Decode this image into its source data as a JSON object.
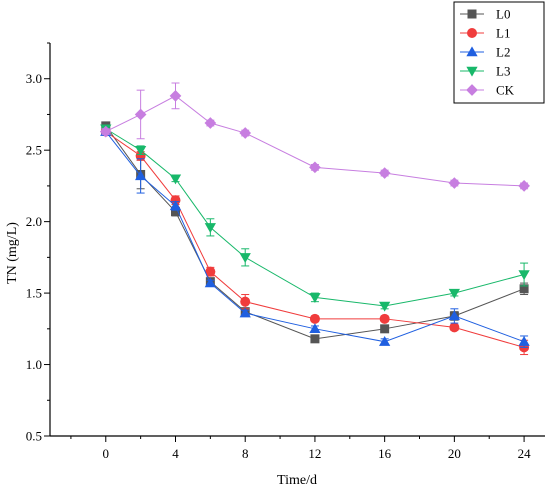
{
  "chart_data": {
    "type": "line",
    "xlabel": "Time/d",
    "ylabel": "TN (mg/L)",
    "x": [
      0,
      2,
      4,
      6,
      8,
      12,
      16,
      20,
      24
    ],
    "x_ticks": [
      0,
      4,
      8,
      12,
      16,
      20,
      24
    ],
    "y_ticks": [
      0.5,
      1.0,
      1.5,
      2.0,
      2.5,
      3.0
    ],
    "x_tick_labels": [
      "0",
      "4",
      "8",
      "12",
      "16",
      "20",
      "24"
    ],
    "y_tick_labels": [
      "0.5",
      "1.0",
      "1.5",
      "2.0",
      "2.5",
      "3.0"
    ],
    "grid": false,
    "legend_position": "top-right",
    "series": [
      {
        "name": "L0",
        "color": "#555555",
        "marker": "square",
        "values": [
          2.67,
          2.33,
          2.07,
          1.58,
          1.37,
          1.18,
          1.25,
          1.34,
          1.53
        ],
        "errors": [
          0.02,
          0.1,
          0.03,
          0.02,
          0.02,
          0.02,
          0.02,
          0.03,
          0.04
        ]
      },
      {
        "name": "L1",
        "color": "#f03c3c",
        "marker": "circle",
        "values": [
          2.63,
          2.46,
          2.15,
          1.65,
          1.44,
          1.32,
          1.32,
          1.26,
          1.12
        ],
        "errors": [
          0.02,
          0.03,
          0.03,
          0.03,
          0.05,
          0.02,
          0.02,
          0.02,
          0.05
        ]
      },
      {
        "name": "L2",
        "color": "#1f5fe0",
        "marker": "triangle-up",
        "values": [
          2.63,
          2.32,
          2.11,
          1.57,
          1.36,
          1.25,
          1.16,
          1.34,
          1.16
        ],
        "errors": [
          0.02,
          0.12,
          0.03,
          0.02,
          0.02,
          0.02,
          0.02,
          0.05,
          0.04
        ]
      },
      {
        "name": "L3",
        "color": "#18b86a",
        "marker": "triangle-down",
        "values": [
          2.65,
          2.5,
          2.3,
          1.96,
          1.75,
          1.47,
          1.41,
          1.5,
          1.63
        ],
        "errors": [
          0.02,
          0.03,
          0.02,
          0.06,
          0.06,
          0.03,
          0.02,
          0.02,
          0.08
        ]
      },
      {
        "name": "CK",
        "color": "#c77ee0",
        "marker": "diamond",
        "values": [
          2.63,
          2.75,
          2.88,
          2.69,
          2.62,
          2.38,
          2.34,
          2.27,
          2.25
        ],
        "errors": [
          0.02,
          0.17,
          0.09,
          0.02,
          0.02,
          0.02,
          0.02,
          0.02,
          0.02
        ]
      }
    ],
    "xlim": [
      -3.2,
      25.2
    ],
    "ylim": [
      0.5,
      3.25
    ]
  }
}
